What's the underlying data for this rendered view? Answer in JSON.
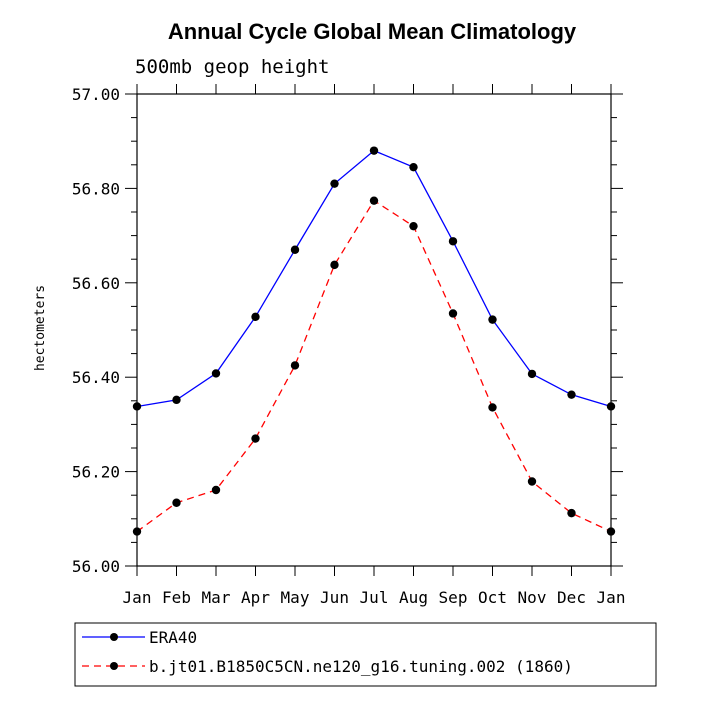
{
  "chart_data": {
    "type": "line",
    "title": "Annual Cycle Global Mean Climatology",
    "subtitle": "500mb geop height",
    "xlabel": "",
    "ylabel": "hectometers",
    "categories": [
      "Jan",
      "Feb",
      "Mar",
      "Apr",
      "May",
      "Jun",
      "Jul",
      "Aug",
      "Sep",
      "Oct",
      "Nov",
      "Dec",
      "Jan"
    ],
    "ylim": [
      56.0,
      57.0
    ],
    "yticks": [
      "56.00",
      "56.20",
      "56.40",
      "56.60",
      "56.80",
      "57.00"
    ],
    "grid": false,
    "legend_position": "bottom-left",
    "series": [
      {
        "name": "ERA40",
        "color": "#0000ff",
        "dash": "solid",
        "marker": "filled-circle",
        "values": [
          56.338,
          56.352,
          56.408,
          56.528,
          56.67,
          56.81,
          56.88,
          56.845,
          56.688,
          56.522,
          56.407,
          56.363,
          56.338
        ]
      },
      {
        "name": "b.jt01.B1850C5CN.ne120_g16.tuning.002 (1860)",
        "color": "#ff0000",
        "dash": "dashed",
        "marker": "filled-circle",
        "values": [
          56.073,
          56.134,
          56.161,
          56.27,
          56.425,
          56.638,
          56.774,
          56.72,
          56.535,
          56.336,
          56.179,
          56.112,
          56.073
        ]
      }
    ]
  }
}
